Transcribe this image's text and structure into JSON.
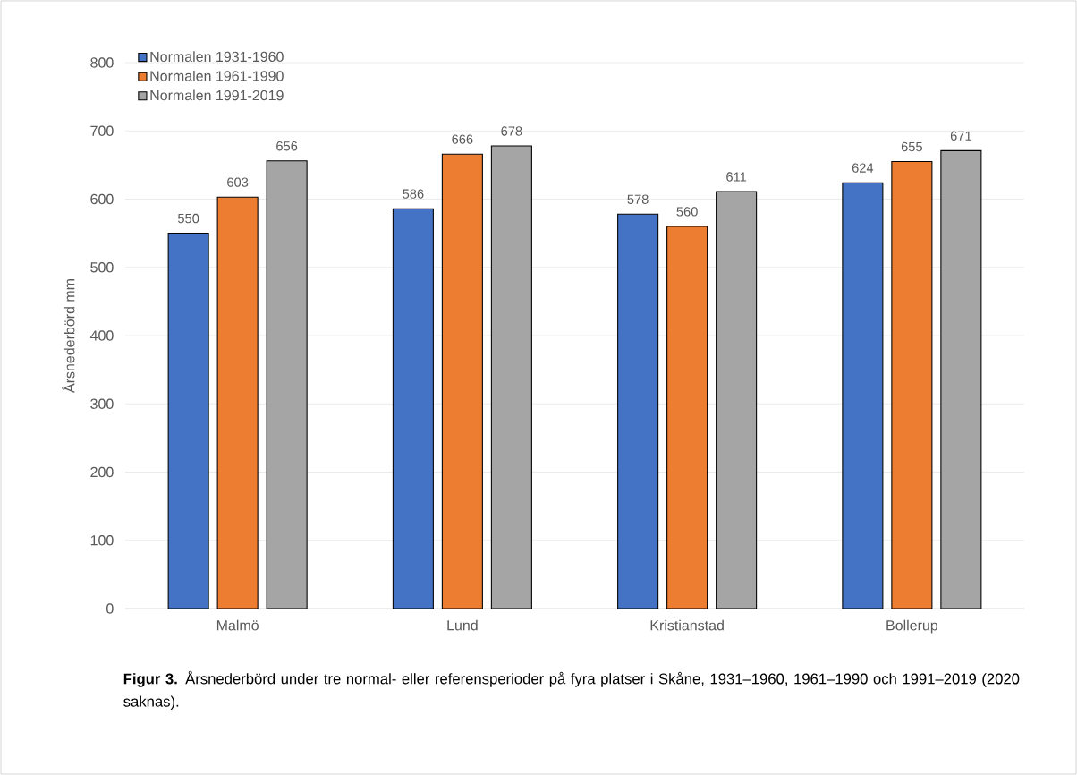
{
  "chart_data": {
    "type": "bar",
    "ylabel": "Årsnederbörd mm",
    "categories": [
      "Malmö",
      "Lund",
      "Kristianstad",
      "Bollerup"
    ],
    "series": [
      {
        "name": "Normalen 1931-1960",
        "color": "#4472c4",
        "values": [
          550,
          586,
          578,
          624
        ]
      },
      {
        "name": "Normalen 1961-1990",
        "color": "#ed7d31",
        "values": [
          603,
          666,
          560,
          655
        ]
      },
      {
        "name": "Normalen 1991-2019",
        "color": "#a5a5a5",
        "values": [
          656,
          678,
          611,
          671
        ]
      }
    ],
    "ylim": [
      0,
      800
    ],
    "yticks": [
      0,
      100,
      200,
      300,
      400,
      500,
      600,
      700,
      800
    ],
    "grid": "y",
    "legend": "top left",
    "data_labels": true,
    "annotations": [
      "**Figur 3.** Årsnederbörd under tre normal- eller referensperioder på fyra platser i Skåne, 1931–1960, 1961–1990 och 1991–2019 (2020 saknas)."
    ]
  }
}
